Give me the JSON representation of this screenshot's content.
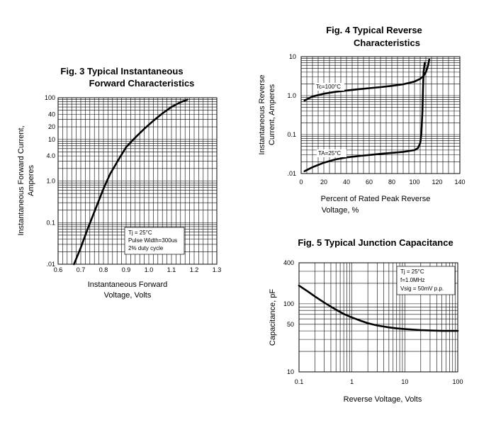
{
  "chart_data": [
    {
      "id": "fig3",
      "type": "line",
      "title_lines": [
        "Fig. 3 Typical Instantaneous",
        "Forward Characteristics"
      ],
      "xlabel_lines": [
        "Instantaneous Forward",
        "Voltage, Volts"
      ],
      "ylabel_lines": [
        "Instantaneous Forward Current,",
        "Amperes"
      ],
      "x_scale": "linear",
      "y_scale": "log",
      "xlim": [
        0.6,
        1.3
      ],
      "ylim": [
        0.01,
        100
      ],
      "x_ticks": [
        0.6,
        0.7,
        0.8,
        0.9,
        1.0,
        1.1,
        1.2,
        1.3
      ],
      "x_tick_labels": [
        "0.6",
        "0.7",
        "0.8",
        "0.9",
        "1.0",
        "1.1",
        "1.2",
        "1.3"
      ],
      "y_ticks": [
        0.01,
        0.1,
        1,
        4,
        10,
        20,
        40,
        100
      ],
      "y_tick_labels": [
        ".01",
        "0.1",
        "1.0",
        "4.0",
        "10",
        "20",
        "40",
        "100"
      ],
      "grid": true,
      "annotation_lines": [
        "Tj = 25°C",
        "Pulse Width=300us",
        "2% duty cycle"
      ],
      "series": [
        {
          "x": [
            0.67,
            0.7,
            0.73,
            0.77,
            0.8,
            0.83,
            0.87,
            0.9,
            0.94,
            0.98,
            1.02,
            1.06,
            1.1,
            1.14,
            1.17
          ],
          "y": [
            0.01,
            0.025,
            0.07,
            0.25,
            0.65,
            1.5,
            3.5,
            6.5,
            11,
            18,
            28,
            42,
            60,
            78,
            90
          ]
        }
      ]
    },
    {
      "id": "fig4",
      "type": "line",
      "title_lines": [
        "Fig. 4 Typical Reverse",
        "Characteristics"
      ],
      "xlabel_lines": [
        "Percent of Rated Peak  Reverse",
        "Voltage, %"
      ],
      "ylabel_lines": [
        "Instantaneous Reverse",
        "Current, Amperes"
      ],
      "x_scale": "linear",
      "y_scale": "log",
      "xlim": [
        0,
        140
      ],
      "ylim": [
        0.01,
        10
      ],
      "x_ticks": [
        0,
        20,
        40,
        60,
        80,
        100,
        120,
        140
      ],
      "x_tick_labels": [
        "0",
        "20",
        "40",
        "60",
        "80",
        "100",
        "120",
        "140"
      ],
      "y_ticks": [
        0.01,
        0.1,
        1,
        10
      ],
      "y_tick_labels": [
        ".01",
        "0.1",
        "1.0",
        "10"
      ],
      "grid": true,
      "series": [
        {
          "name": "Tc=100°C",
          "x": [
            3,
            10,
            20,
            30,
            40,
            50,
            60,
            70,
            80,
            90,
            100,
            105,
            108,
            110,
            111,
            112,
            113
          ],
          "y": [
            0.75,
            0.95,
            1.12,
            1.25,
            1.35,
            1.45,
            1.55,
            1.65,
            1.78,
            1.95,
            2.3,
            2.7,
            3.2,
            4,
            4.8,
            6,
            8.5
          ]
        },
        {
          "name": "TA=25°C",
          "x": [
            3,
            10,
            20,
            30,
            40,
            50,
            60,
            70,
            80,
            90,
            100,
            103,
            105,
            106,
            107,
            107.5,
            108,
            109
          ],
          "y": [
            0.0115,
            0.0145,
            0.019,
            0.023,
            0.026,
            0.028,
            0.03,
            0.032,
            0.034,
            0.036,
            0.04,
            0.045,
            0.06,
            0.1,
            0.4,
            1.5,
            4,
            7
          ]
        }
      ]
    },
    {
      "id": "fig5",
      "type": "line",
      "title_lines": [
        "Fig. 5 Typical Junction Capacitance"
      ],
      "xlabel_lines": [
        "Reverse Voltage, Volts"
      ],
      "ylabel_lines": [
        "Capacitance, pF"
      ],
      "x_scale": "log",
      "y_scale": "log",
      "xlim": [
        0.1,
        100
      ],
      "ylim": [
        10,
        400
      ],
      "x_ticks": [
        0.1,
        1,
        10,
        100
      ],
      "x_tick_labels": [
        "0.1",
        "1",
        "10",
        "100"
      ],
      "y_ticks": [
        10,
        50,
        100,
        400
      ],
      "y_tick_labels": [
        "10",
        "50",
        "100",
        "400"
      ],
      "grid": true,
      "annotation_lines": [
        "Tj = 25°C",
        "f=1.0MHz",
        "Vsig = 50mV p.p."
      ],
      "series": [
        {
          "x": [
            0.1,
            0.15,
            0.2,
            0.3,
            0.5,
            0.7,
            1,
            1.5,
            2,
            3,
            5,
            7,
            10,
            20,
            30,
            50,
            70,
            100
          ],
          "y": [
            185,
            150,
            128,
            104,
            82,
            71,
            63,
            56,
            52,
            48,
            45,
            43.5,
            42.5,
            41,
            40.5,
            40,
            40,
            40
          ]
        }
      ]
    }
  ]
}
